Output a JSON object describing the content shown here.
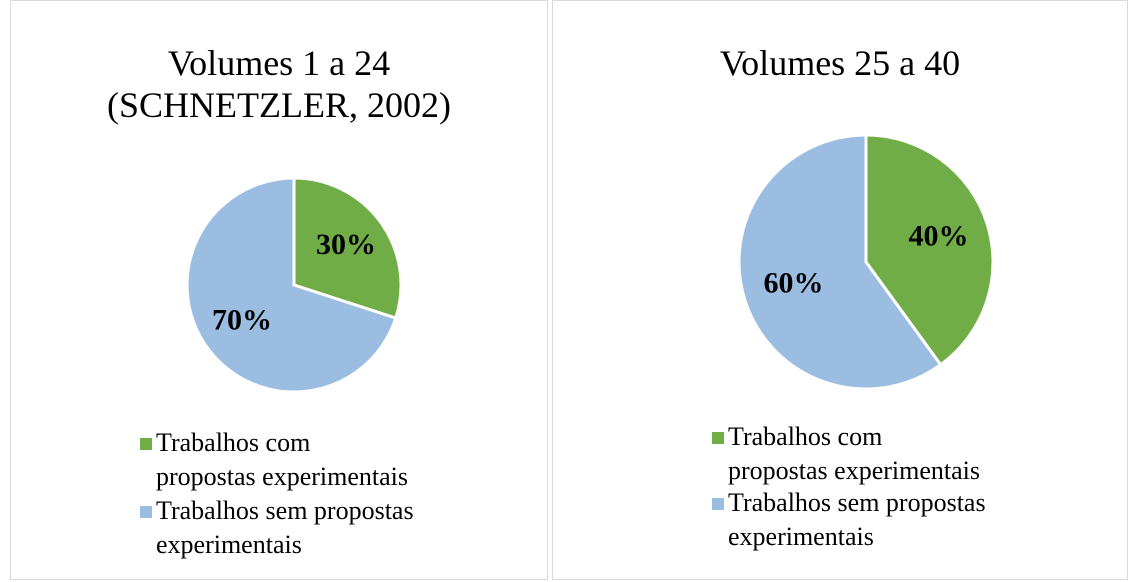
{
  "chart_data": [
    {
      "type": "pie",
      "title": "Volumes 1 a 24\n(SCHNETZLER, 2002)",
      "categories": [
        "Trabalhos com\npropostas experimentais",
        "Trabalhos sem propostas\nexperimentais"
      ],
      "values": [
        30,
        70
      ],
      "value_labels": [
        "30%",
        "70%"
      ],
      "colors": [
        "#70ad47",
        "#9bbde2"
      ]
    },
    {
      "type": "pie",
      "title": "Volumes 25 a 40",
      "categories": [
        "Trabalhos com\npropostas experimentais",
        "Trabalhos sem propostas\nexperimentais"
      ],
      "values": [
        40,
        60
      ],
      "value_labels": [
        "40%",
        "60%"
      ],
      "colors": [
        "#70ad47",
        "#9bbde2"
      ]
    }
  ]
}
